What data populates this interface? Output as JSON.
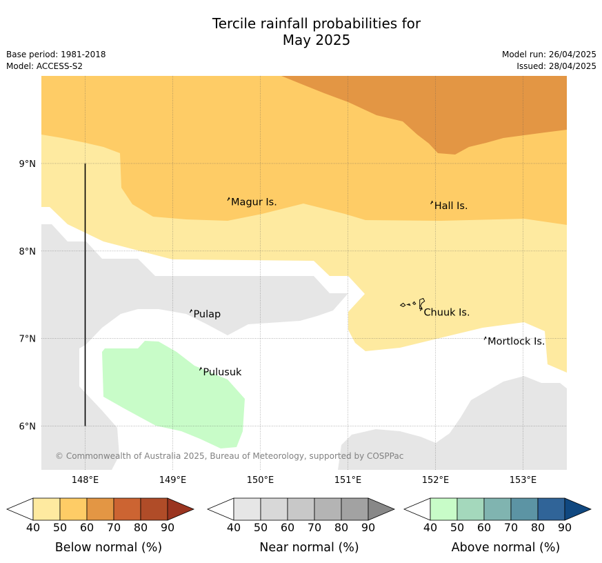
{
  "title_line1": "Tercile rainfall probabilities for",
  "title_line2": "May 2025",
  "meta_left": [
    "Base period: 1981-2018",
    "Model: ACCESS-S2"
  ],
  "meta_right": [
    "Model run: 26/04/2025",
    "Issued: 28/04/2025"
  ],
  "copyright": "© Commonwealth of Australia 2025, Bureau of Meteorology, supported by COSPPac",
  "map": {
    "lon_range": [
      147.5,
      153.5
    ],
    "lat_range": [
      5.5,
      10.0
    ],
    "lat_ticks": [
      {
        "value": 9,
        "label": "9°N"
      },
      {
        "value": 8,
        "label": "8°N"
      },
      {
        "value": 7,
        "label": "7°N"
      },
      {
        "value": 6,
        "label": "6°N"
      }
    ],
    "lon_ticks": [
      {
        "value": 148,
        "label": "148°E"
      },
      {
        "value": 149,
        "label": "149°E"
      },
      {
        "value": 150,
        "label": "150°E"
      },
      {
        "value": 151,
        "label": "151°E"
      },
      {
        "value": 152,
        "label": "152°E"
      },
      {
        "value": 153,
        "label": "153°E"
      }
    ],
    "gridlines": true,
    "places": [
      {
        "name": "Magur Is.",
        "lon": 149.65,
        "lat": 8.56
      },
      {
        "name": "Hall Is.",
        "lon": 151.97,
        "lat": 8.52
      },
      {
        "name": "Pulap",
        "lon": 149.22,
        "lat": 7.28
      },
      {
        "name": "Chuuk Is.",
        "lon": 151.85,
        "lat": 7.3
      },
      {
        "name": "Mortlock Is.",
        "lon": 152.58,
        "lat": 6.97
      },
      {
        "name": "Pulusuk",
        "lon": 149.33,
        "lat": 6.62
      }
    ],
    "boundary_line": {
      "lon": 148.0,
      "lat_from": 6.0,
      "lat_to": 9.0
    }
  },
  "colorbars": [
    {
      "title": "Below normal (%)",
      "ticks": [
        "40",
        "50",
        "60",
        "70",
        "80",
        "90"
      ],
      "colors": [
        "#ffffff",
        "#feeaa0",
        "#fecc66",
        "#e39644",
        "#cc6432",
        "#b04c28",
        "#9a3420"
      ]
    },
    {
      "title": "Near normal (%)",
      "ticks": [
        "40",
        "50",
        "60",
        "70",
        "80",
        "90"
      ],
      "colors": [
        "#ffffff",
        "#e6e6e6",
        "#d8d8d8",
        "#c8c8c8",
        "#b4b4b4",
        "#a2a2a2",
        "#888888"
      ]
    },
    {
      "title": "Above normal (%)",
      "ticks": [
        "40",
        "50",
        "60",
        "70",
        "80",
        "90"
      ],
      "colors": [
        "#ffffff",
        "#c8fcc8",
        "#a4d8bc",
        "#80b4b0",
        "#5c94a4",
        "#306498",
        "#104880"
      ]
    }
  ]
}
